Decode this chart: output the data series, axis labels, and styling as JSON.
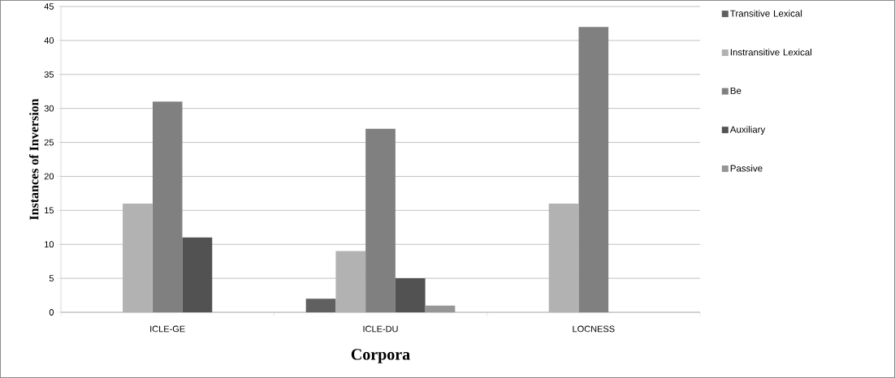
{
  "chart_data": {
    "type": "bar",
    "xlabel": "Corpora",
    "ylabel": "Instances of Inversion",
    "categories": [
      "ICLE-GE",
      "ICLE-DU",
      "LOCNESS"
    ],
    "series": [
      {
        "name": "Transitive Lexical",
        "color": "#606060",
        "values": [
          0,
          2,
          0
        ]
      },
      {
        "name": "Instransitive Lexical",
        "color": "#b2b2b2",
        "values": [
          16,
          9,
          16
        ]
      },
      {
        "name": "Be",
        "color": "#808080",
        "values": [
          31,
          27,
          42
        ]
      },
      {
        "name": "Auxiliary",
        "color": "#525252",
        "values": [
          11,
          5,
          0
        ]
      },
      {
        "name": "Passive",
        "color": "#969696",
        "values": [
          0,
          1,
          0
        ]
      }
    ],
    "ylim": [
      0,
      45
    ],
    "yticks": [
      0,
      5,
      10,
      15,
      20,
      25,
      30,
      35,
      40,
      45
    ],
    "grid": "y",
    "legend": "right"
  }
}
